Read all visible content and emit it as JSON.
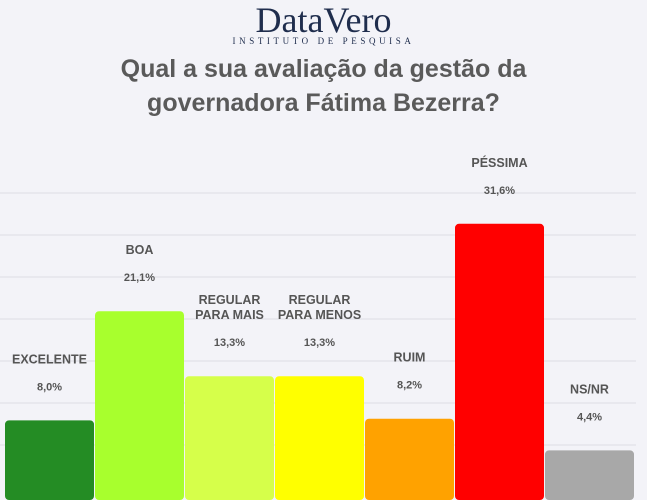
{
  "logo": {
    "name": "DataVero",
    "tagline": "INSTITUTO DE PESQUISA"
  },
  "title_line1": "Qual a sua avaliação da gestão da",
  "title_line2": "governadora Fátima Bezerra?",
  "chart_data": {
    "type": "bar",
    "title": "Qual a sua avaliação da gestão da governadora Fátima Bezerra?",
    "categories": [
      [
        "EXCELENTE"
      ],
      [
        "BOA"
      ],
      [
        "REGULAR",
        "PARA MAIS"
      ],
      [
        "REGULAR",
        "PARA MENOS"
      ],
      [
        "RUIM"
      ],
      [
        "PÉSSIMA"
      ],
      [
        "NS/NR"
      ]
    ],
    "values": [
      8.0,
      21.1,
      13.3,
      13.3,
      8.2,
      31.6,
      4.4
    ],
    "value_labels": [
      "8,0%",
      "21,1%",
      "13,3%",
      "13,3%",
      "8,2%",
      "31,6%",
      "4,4%"
    ],
    "colors": [
      "#248c24",
      "#a8ff2d",
      "#d6ff4a",
      "#ffff00",
      "#ffa200",
      "#ff0000",
      "#a8a8a8"
    ],
    "ylim": [
      0,
      35
    ],
    "grid": true,
    "legend": "none"
  }
}
